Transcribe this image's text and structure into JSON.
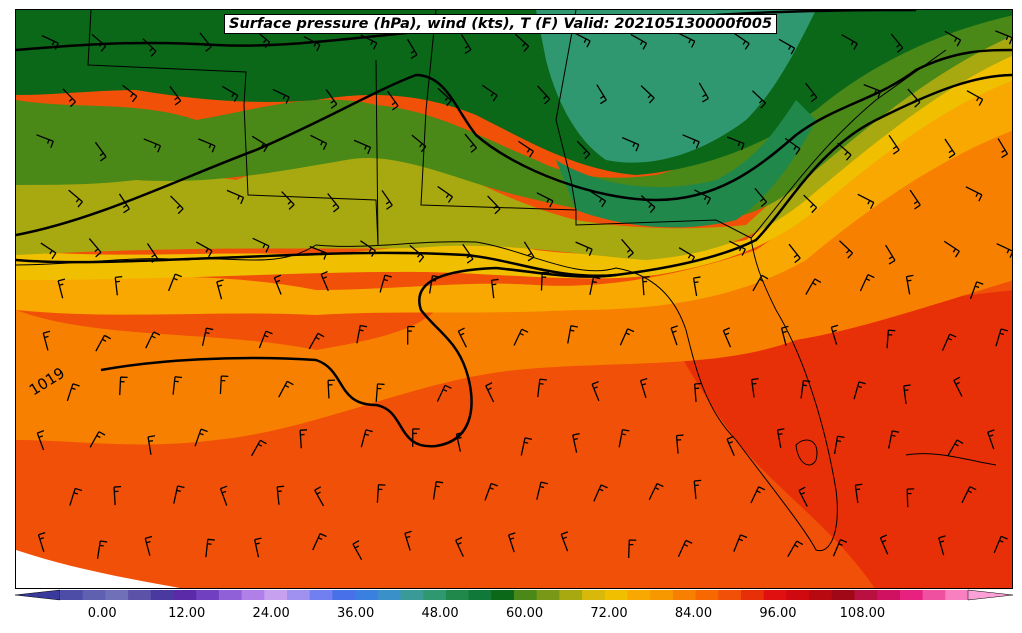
{
  "title": "Surface pressure (hPa), wind (kts), T (F) Valid: 202105130000f005",
  "contour_label": "1019",
  "colorbar": {
    "ticks": [
      "0.00",
      "12.00",
      "24.00",
      "36.00",
      "48.00",
      "60.00",
      "72.00",
      "84.00",
      "96.00",
      "108.00"
    ],
    "min": -6,
    "max": 123,
    "step": 3,
    "colors": [
      "#3a3a9c",
      "#4d4da8",
      "#6060b0",
      "#7070b8",
      "#5c52a8",
      "#4a3aa0",
      "#5a2aa8",
      "#7040c0",
      "#9060d8",
      "#b080e8",
      "#c8a0f0",
      "#a090f0",
      "#7080f0",
      "#4870e8",
      "#3a80e0",
      "#3a90c8",
      "#3a9a98",
      "#309870",
      "#20884a",
      "#107838",
      "#0a6818",
      "#4a8818",
      "#7a9818",
      "#a8a810",
      "#d8b808",
      "#f0c000",
      "#f8a800",
      "#f89800",
      "#f88000",
      "#f86800",
      "#f05008",
      "#e83008",
      "#e01010",
      "#d00810",
      "#b80810",
      "#a00818",
      "#b81040",
      "#d01060",
      "#e82080",
      "#f050a0",
      "#f880c0",
      "#fca0d8"
    ]
  },
  "temperature_field_colors": {
    "dark_green": "#0a6818",
    "forest_green": "#20884a",
    "teal_green": "#309870",
    "olive": "#4a8818",
    "olive_yellow": "#a8a810",
    "yellow": "#f0c000",
    "orange_light": "#f8a800",
    "orange": "#f88000",
    "orange_red": "#f05008",
    "red": "#e83008"
  }
}
